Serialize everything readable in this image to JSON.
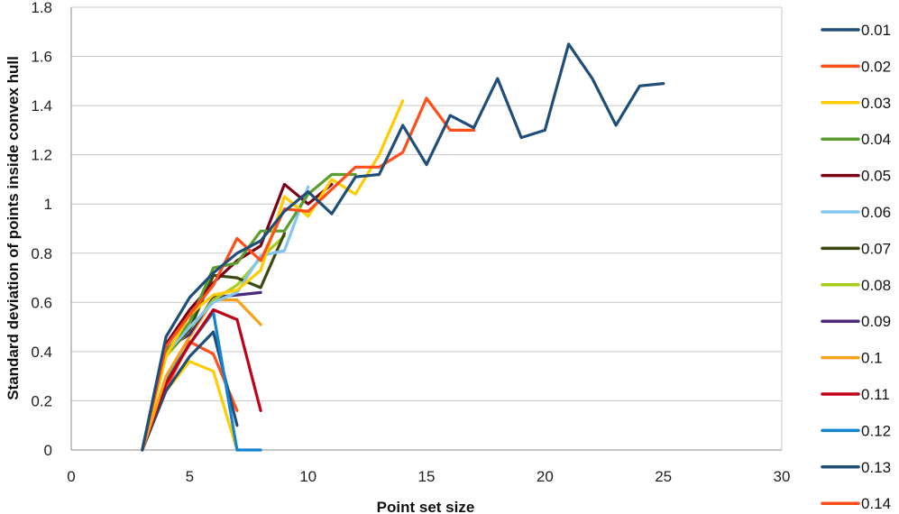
{
  "chart_data": {
    "type": "line",
    "title": "",
    "xlabel": "Point set size",
    "ylabel": "Standard deviation of points inside convex hull",
    "xlim": [
      0,
      30
    ],
    "ylim": [
      0,
      1.8
    ],
    "x_ticks": [
      0,
      5,
      10,
      15,
      20,
      25,
      30
    ],
    "y_ticks": [
      0,
      0.2,
      0.4,
      0.6,
      0.8,
      1,
      1.2,
      1.4,
      1.6,
      1.8
    ],
    "x_tick_labels": [
      "0",
      "5",
      "10",
      "15",
      "20",
      "25",
      "30"
    ],
    "y_tick_labels": [
      "0",
      "0.2",
      "0.4",
      "0.6",
      "0.8",
      "1",
      "1.2",
      "1.4",
      "1.6",
      "1.8"
    ],
    "grid": "horizontal",
    "legend_position": "right",
    "series": [
      {
        "name": "0.01",
        "color": "#1f4e79",
        "points": [
          [
            3,
            0
          ],
          [
            4,
            0.46
          ],
          [
            5,
            0.62
          ],
          [
            6,
            0.72
          ],
          [
            7,
            0.8
          ],
          [
            8,
            0.85
          ],
          [
            9,
            0.97
          ],
          [
            10,
            1.05
          ],
          [
            11,
            0.96
          ],
          [
            12,
            1.11
          ],
          [
            13,
            1.12
          ],
          [
            14,
            1.32
          ],
          [
            15,
            1.16
          ],
          [
            16,
            1.36
          ],
          [
            17,
            1.31
          ],
          [
            18,
            1.51
          ],
          [
            19,
            1.27
          ],
          [
            20,
            1.3
          ],
          [
            21,
            1.65
          ],
          [
            22,
            1.51
          ],
          [
            23,
            1.32
          ],
          [
            24,
            1.48
          ],
          [
            25,
            1.49
          ]
        ]
      },
      {
        "name": "0.02",
        "color": "#ff4e1a",
        "points": [
          [
            3,
            0
          ],
          [
            4,
            0.42
          ],
          [
            5,
            0.55
          ],
          [
            6,
            0.67
          ],
          [
            7,
            0.86
          ],
          [
            8,
            0.77
          ],
          [
            9,
            0.98
          ],
          [
            10,
            0.97
          ],
          [
            11,
            1.06
          ],
          [
            12,
            1.15
          ],
          [
            13,
            1.15
          ],
          [
            14,
            1.21
          ],
          [
            15,
            1.43
          ],
          [
            16,
            1.3
          ],
          [
            17,
            1.3
          ]
        ]
      },
      {
        "name": "0.03",
        "color": "#ffcc00",
        "points": [
          [
            3,
            0
          ],
          [
            4,
            0.38
          ],
          [
            5,
            0.55
          ],
          [
            6,
            0.63
          ],
          [
            7,
            0.65
          ],
          [
            8,
            0.73
          ],
          [
            9,
            1.03
          ],
          [
            10,
            0.95
          ],
          [
            11,
            1.1
          ],
          [
            12,
            1.04
          ],
          [
            13,
            1.2
          ],
          [
            14,
            1.42
          ]
        ]
      },
      {
        "name": "0.04",
        "color": "#5a9e2f",
        "points": [
          [
            3,
            0
          ],
          [
            4,
            0.4
          ],
          [
            5,
            0.52
          ],
          [
            6,
            0.74
          ],
          [
            7,
            0.76
          ],
          [
            8,
            0.89
          ],
          [
            9,
            0.89
          ],
          [
            10,
            1.04
          ],
          [
            11,
            1.12
          ],
          [
            12,
            1.12
          ]
        ]
      },
      {
        "name": "0.05",
        "color": "#7a0016",
        "points": [
          [
            3,
            0
          ],
          [
            4,
            0.43
          ],
          [
            5,
            0.57
          ],
          [
            6,
            0.68
          ],
          [
            7,
            0.77
          ],
          [
            8,
            0.83
          ],
          [
            9,
            1.08
          ],
          [
            10,
            1.0
          ],
          [
            11,
            1.08
          ]
        ]
      },
      {
        "name": "0.06",
        "color": "#84c5ef",
        "points": [
          [
            3,
            0
          ],
          [
            4,
            0.39
          ],
          [
            5,
            0.5
          ],
          [
            6,
            0.6
          ],
          [
            7,
            0.64
          ],
          [
            8,
            0.79
          ],
          [
            9,
            0.81
          ],
          [
            10,
            1.07
          ]
        ]
      },
      {
        "name": "0.07",
        "color": "#3a4a10",
        "points": [
          [
            3,
            0
          ],
          [
            4,
            0.39
          ],
          [
            5,
            0.49
          ],
          [
            6,
            0.71
          ],
          [
            7,
            0.7
          ],
          [
            8,
            0.66
          ],
          [
            9,
            0.88
          ]
        ]
      },
      {
        "name": "0.08",
        "color": "#a8cc1a",
        "points": [
          [
            3,
            0
          ],
          [
            4,
            0.38
          ],
          [
            5,
            0.49
          ],
          [
            6,
            0.61
          ],
          [
            7,
            0.67
          ],
          [
            8,
            0.78
          ],
          [
            9,
            0.87
          ]
        ]
      },
      {
        "name": "0.09",
        "color": "#4b2a7a",
        "points": [
          [
            3,
            0
          ],
          [
            4,
            0.41
          ],
          [
            5,
            0.47
          ],
          [
            6,
            0.62
          ],
          [
            7,
            0.63
          ],
          [
            8,
            0.64
          ]
        ]
      },
      {
        "name": "0.1",
        "color": "#f5a21c",
        "points": [
          [
            3,
            0
          ],
          [
            4,
            0.3
          ],
          [
            5,
            0.46
          ],
          [
            6,
            0.61
          ],
          [
            7,
            0.61
          ],
          [
            8,
            0.51
          ]
        ]
      },
      {
        "name": "0.11",
        "color": "#c00017",
        "points": [
          [
            3,
            0
          ],
          [
            4,
            0.27
          ],
          [
            5,
            0.43
          ],
          [
            6,
            0.57
          ],
          [
            7,
            0.53
          ],
          [
            8,
            0.16
          ]
        ]
      },
      {
        "name": "0.12",
        "color": "#1584d0",
        "points": [
          [
            3,
            0
          ],
          [
            4,
            0.29
          ],
          [
            5,
            0.43
          ],
          [
            6,
            0.56
          ],
          [
            7,
            0.0
          ],
          [
            8,
            0.0
          ]
        ]
      },
      {
        "name": "0.13",
        "color": "#1f4e79",
        "points": [
          [
            3,
            0
          ],
          [
            4,
            0.24
          ],
          [
            5,
            0.38
          ],
          [
            6,
            0.48
          ],
          [
            7,
            0.1
          ]
        ]
      },
      {
        "name": "0.14",
        "color": "#ff4e1a",
        "points": [
          [
            3,
            0
          ],
          [
            4,
            0.25
          ],
          [
            5,
            0.44
          ],
          [
            6,
            0.39
          ],
          [
            7,
            0.16
          ]
        ]
      },
      {
        "name": "",
        "color": "#ffcc00",
        "points": [
          [
            3,
            0
          ],
          [
            4,
            0.24
          ],
          [
            5,
            0.36
          ],
          [
            6,
            0.32
          ],
          [
            7,
            0
          ]
        ]
      }
    ]
  }
}
